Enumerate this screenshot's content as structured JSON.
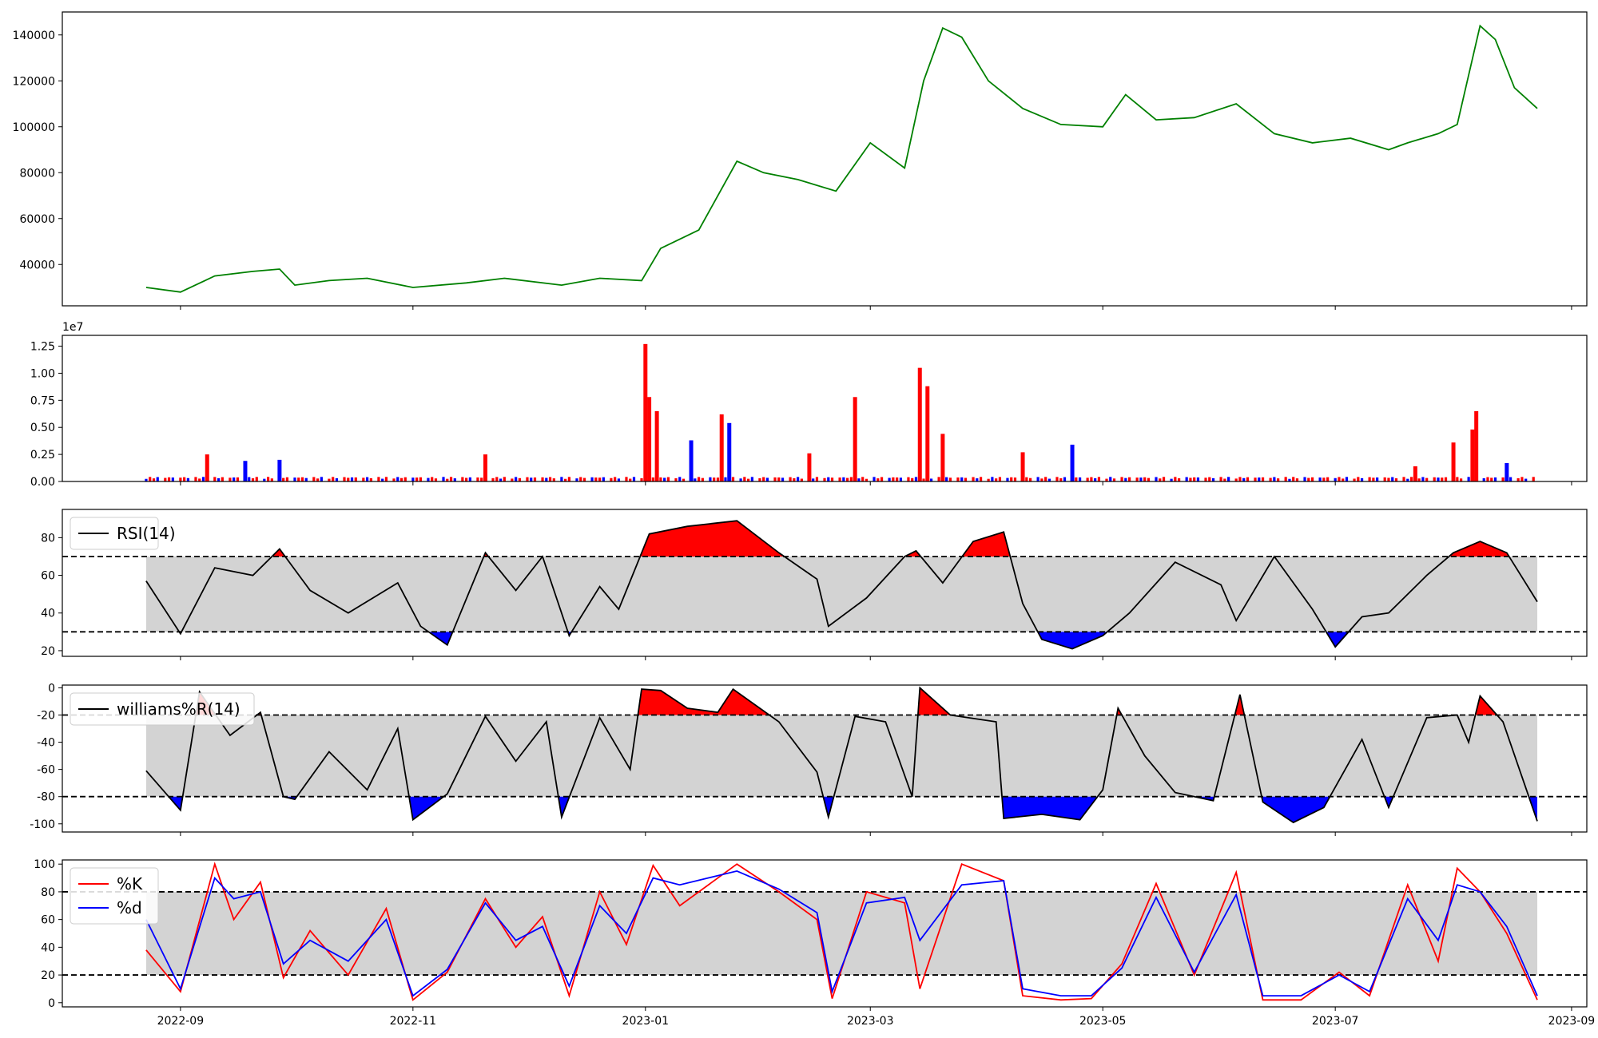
{
  "colors": {
    "price": "#008000",
    "volume_up": "#ff0000",
    "volume_down": "#0000ff",
    "overbought_fill": "#ff0000",
    "oversold_fill": "#0000ff",
    "band_fill": "#d3d3d3",
    "indicator_line": "#000000",
    "k_line": "#ff0000",
    "d_line": "#0000ff"
  },
  "chart_data": [
    {
      "type": "line",
      "title": "",
      "series": [
        {
          "x": [
            "2022-08-23",
            "2022-09-01",
            "2022-09-10",
            "2022-09-20",
            "2022-09-27",
            "2022-10-01",
            "2022-10-10",
            "2022-10-20",
            "2022-11-01",
            "2022-11-15",
            "2022-11-25",
            "2022-12-10",
            "2022-12-20",
            "2022-12-31",
            "2023-01-05",
            "2023-01-15",
            "2023-01-25",
            "2023-02-01",
            "2023-02-10",
            "2023-02-20",
            "2023-03-01",
            "2023-03-10",
            "2023-03-15",
            "2023-03-20",
            "2023-03-25",
            "2023-04-01",
            "2023-04-10",
            "2023-04-20",
            "2023-05-01",
            "2023-05-07",
            "2023-05-15",
            "2023-05-25",
            "2023-06-05",
            "2023-06-15",
            "2023-06-25",
            "2023-07-05",
            "2023-07-15",
            "2023-07-20",
            "2023-07-28",
            "2023-08-02",
            "2023-08-08",
            "2023-08-12",
            "2023-08-17",
            "2023-08-23"
          ],
          "values": [
            30000,
            28000,
            35000,
            37000,
            38000,
            31000,
            33000,
            34000,
            30000,
            32000,
            34000,
            31000,
            34000,
            33000,
            47000,
            55000,
            85000,
            80000,
            77000,
            72000,
            93000,
            82000,
            120000,
            143000,
            139000,
            120000,
            108000,
            101000,
            100000,
            114000,
            103000,
            104000,
            110000,
            97000,
            93000,
            95000,
            90000,
            93000,
            97000,
            101000,
            144000,
            138000,
            117000,
            108000
          ]
        }
      ],
      "ylim": [
        22000,
        150000
      ],
      "yticks": [
        40000,
        60000,
        80000,
        100000,
        120000,
        140000
      ]
    },
    {
      "type": "bar",
      "title": "",
      "offset_text": "1e7",
      "ylim": [
        0,
        13500000
      ],
      "yticks": [
        0.0,
        0.25,
        0.5,
        0.75,
        1.0,
        1.25
      ],
      "ytick_labels": [
        "0.00",
        "0.25",
        "0.50",
        "0.75",
        "1.00",
        "1.25"
      ],
      "baseline": 300000,
      "bars": [
        {
          "date": "2022-09-08",
          "value": 2500000,
          "dir": "up"
        },
        {
          "date": "2022-09-18",
          "value": 1900000,
          "dir": "down"
        },
        {
          "date": "2022-09-27",
          "value": 2000000,
          "dir": "down"
        },
        {
          "date": "2022-11-20",
          "value": 2500000,
          "dir": "up"
        },
        {
          "date": "2023-01-01",
          "value": 12700000,
          "dir": "up"
        },
        {
          "date": "2023-01-02",
          "value": 7800000,
          "dir": "up"
        },
        {
          "date": "2023-01-04",
          "value": 6500000,
          "dir": "up"
        },
        {
          "date": "2023-01-13",
          "value": 3800000,
          "dir": "down"
        },
        {
          "date": "2023-01-21",
          "value": 6200000,
          "dir": "up"
        },
        {
          "date": "2023-01-23",
          "value": 5400000,
          "dir": "down"
        },
        {
          "date": "2023-02-13",
          "value": 2600000,
          "dir": "up"
        },
        {
          "date": "2023-02-25",
          "value": 7800000,
          "dir": "up"
        },
        {
          "date": "2023-03-14",
          "value": 10500000,
          "dir": "up"
        },
        {
          "date": "2023-03-16",
          "value": 8800000,
          "dir": "up"
        },
        {
          "date": "2023-03-20",
          "value": 4400000,
          "dir": "up"
        },
        {
          "date": "2023-04-10",
          "value": 2700000,
          "dir": "up"
        },
        {
          "date": "2023-04-23",
          "value": 3400000,
          "dir": "down"
        },
        {
          "date": "2023-07-22",
          "value": 1400000,
          "dir": "up"
        },
        {
          "date": "2023-08-01",
          "value": 3600000,
          "dir": "up"
        },
        {
          "date": "2023-08-06",
          "value": 4800000,
          "dir": "up"
        },
        {
          "date": "2023-08-07",
          "value": 6500000,
          "dir": "up"
        },
        {
          "date": "2023-08-15",
          "value": 1700000,
          "dir": "down"
        }
      ]
    },
    {
      "type": "line",
      "title": "",
      "legend": [
        "RSI(14)"
      ],
      "legend_loc": "upper left",
      "thresholds": [
        70,
        30
      ],
      "ylim": [
        17,
        95
      ],
      "yticks": [
        20,
        40,
        60,
        80
      ],
      "series": [
        {
          "name": "RSI(14)",
          "x": [
            "2022-08-23",
            "2022-09-01",
            "2022-09-10",
            "2022-09-20",
            "2022-09-27",
            "2022-10-05",
            "2022-10-15",
            "2022-10-28",
            "2022-11-03",
            "2022-11-10",
            "2022-11-20",
            "2022-11-28",
            "2022-12-05",
            "2022-12-12",
            "2022-12-20",
            "2022-12-25",
            "2022-12-30",
            "2023-01-02",
            "2023-01-12",
            "2023-01-25",
            "2023-02-05",
            "2023-02-15",
            "2023-02-18",
            "2023-02-28",
            "2023-03-10",
            "2023-03-13",
            "2023-03-20",
            "2023-03-28",
            "2023-04-05",
            "2023-04-10",
            "2023-04-15",
            "2023-04-23",
            "2023-05-01",
            "2023-05-08",
            "2023-05-20",
            "2023-06-01",
            "2023-06-05",
            "2023-06-15",
            "2023-06-25",
            "2023-07-01",
            "2023-07-08",
            "2023-07-15",
            "2023-07-25",
            "2023-08-01",
            "2023-08-08",
            "2023-08-15",
            "2023-08-23"
          ],
          "values": [
            57,
            29,
            64,
            60,
            74,
            52,
            40,
            56,
            33,
            23,
            72,
            52,
            70,
            28,
            54,
            42,
            67,
            82,
            86,
            89,
            72,
            58,
            33,
            48,
            70,
            73,
            56,
            78,
            83,
            45,
            26,
            21,
            28,
            40,
            67,
            55,
            36,
            70,
            42,
            22,
            38,
            40,
            60,
            72,
            78,
            72,
            46
          ]
        }
      ]
    },
    {
      "type": "line",
      "title": "",
      "legend": [
        "williams%R(14)"
      ],
      "legend_loc": "upper left",
      "thresholds": [
        -20,
        -80
      ],
      "ylim": [
        -106,
        2
      ],
      "yticks": [
        0,
        -20,
        -40,
        -60,
        -80,
        -100
      ],
      "series": [
        {
          "name": "williams%R(14)",
          "x": [
            "2022-08-23",
            "2022-09-01",
            "2022-09-06",
            "2022-09-14",
            "2022-09-22",
            "2022-09-28",
            "2022-10-01",
            "2022-10-10",
            "2022-10-20",
            "2022-10-28",
            "2022-11-01",
            "2022-11-10",
            "2022-11-20",
            "2022-11-28",
            "2022-12-06",
            "2022-12-10",
            "2022-12-20",
            "2022-12-28",
            "2022-12-31",
            "2023-01-05",
            "2023-01-12",
            "2023-01-20",
            "2023-01-24",
            "2023-02-05",
            "2023-02-15",
            "2023-02-18",
            "2023-02-25",
            "2023-03-05",
            "2023-03-12",
            "2023-03-14",
            "2023-03-22",
            "2023-04-03",
            "2023-04-05",
            "2023-04-15",
            "2023-04-25",
            "2023-05-01",
            "2023-05-05",
            "2023-05-12",
            "2023-05-20",
            "2023-05-30",
            "2023-06-06",
            "2023-06-12",
            "2023-06-20",
            "2023-06-28",
            "2023-07-08",
            "2023-07-15",
            "2023-07-25",
            "2023-08-02",
            "2023-08-05",
            "2023-08-08",
            "2023-08-14",
            "2023-08-23"
          ],
          "values": [
            -61,
            -90,
            -3,
            -35,
            -18,
            -80,
            -82,
            -47,
            -75,
            -30,
            -97,
            -78,
            -21,
            -54,
            -25,
            -95,
            -22,
            -60,
            -1,
            -2,
            -15,
            -18,
            -1,
            -25,
            -62,
            -95,
            -21,
            -25,
            -80,
            0,
            -20,
            -25,
            -96,
            -93,
            -97,
            -75,
            -15,
            -50,
            -77,
            -83,
            -5,
            -84,
            -99,
            -88,
            -38,
            -88,
            -22,
            -20,
            -40,
            -6,
            -25,
            -98
          ]
        }
      ]
    },
    {
      "type": "line",
      "title": "",
      "legend": [
        "%K",
        "%d"
      ],
      "legend_loc": "upper left",
      "thresholds": [
        80,
        20
      ],
      "ylim": [
        -3,
        103
      ],
      "yticks": [
        0,
        20,
        40,
        60,
        80,
        100
      ],
      "series": [
        {
          "name": "%K",
          "x": [
            "2022-08-23",
            "2022-09-01",
            "2022-09-10",
            "2022-09-15",
            "2022-09-22",
            "2022-09-28",
            "2022-10-05",
            "2022-10-15",
            "2022-10-25",
            "2022-11-01",
            "2022-11-10",
            "2022-11-20",
            "2022-11-28",
            "2022-12-05",
            "2022-12-12",
            "2022-12-20",
            "2022-12-27",
            "2023-01-03",
            "2023-01-10",
            "2023-01-25",
            "2023-02-05",
            "2023-02-15",
            "2023-02-19",
            "2023-02-28",
            "2023-03-10",
            "2023-03-14",
            "2023-03-25",
            "2023-04-05",
            "2023-04-10",
            "2023-04-20",
            "2023-04-28",
            "2023-05-06",
            "2023-05-15",
            "2023-05-25",
            "2023-06-05",
            "2023-06-12",
            "2023-06-22",
            "2023-07-02",
            "2023-07-10",
            "2023-07-20",
            "2023-07-28",
            "2023-08-02",
            "2023-08-08",
            "2023-08-15",
            "2023-08-23"
          ],
          "values": [
            38,
            8,
            100,
            60,
            87,
            18,
            52,
            20,
            68,
            2,
            22,
            75,
            40,
            62,
            5,
            80,
            42,
            99,
            70,
            100,
            80,
            60,
            3,
            80,
            72,
            10,
            100,
            88,
            5,
            2,
            3,
            28,
            86,
            20,
            94,
            2,
            2,
            22,
            5,
            85,
            30,
            97,
            80,
            50,
            2
          ]
        },
        {
          "name": "%d",
          "x": [
            "2022-08-23",
            "2022-09-01",
            "2022-09-10",
            "2022-09-15",
            "2022-09-22",
            "2022-09-28",
            "2022-10-05",
            "2022-10-15",
            "2022-10-25",
            "2022-11-01",
            "2022-11-10",
            "2022-11-20",
            "2022-11-28",
            "2022-12-05",
            "2022-12-12",
            "2022-12-20",
            "2022-12-27",
            "2023-01-03",
            "2023-01-10",
            "2023-01-25",
            "2023-02-05",
            "2023-02-15",
            "2023-02-19",
            "2023-02-28",
            "2023-03-10",
            "2023-03-14",
            "2023-03-25",
            "2023-04-05",
            "2023-04-10",
            "2023-04-20",
            "2023-04-28",
            "2023-05-06",
            "2023-05-15",
            "2023-05-25",
            "2023-06-05",
            "2023-06-12",
            "2023-06-22",
            "2023-07-02",
            "2023-07-10",
            "2023-07-20",
            "2023-07-28",
            "2023-08-02",
            "2023-08-08",
            "2023-08-15",
            "2023-08-23"
          ],
          "values": [
            60,
            10,
            90,
            75,
            80,
            28,
            45,
            30,
            60,
            5,
            24,
            72,
            45,
            55,
            12,
            70,
            50,
            90,
            85,
            95,
            82,
            65,
            8,
            72,
            76,
            45,
            85,
            88,
            10,
            5,
            5,
            25,
            76,
            22,
            78,
            5,
            5,
            20,
            8,
            75,
            45,
            85,
            80,
            55,
            5
          ]
        }
      ]
    }
  ],
  "x_axis": {
    "ticks": [
      "2022-09",
      "2022-11",
      "2023-01",
      "2023-03",
      "2023-05",
      "2023-07",
      "2023-09"
    ],
    "xlim": [
      "2022-08-01",
      "2023-09-05"
    ]
  }
}
